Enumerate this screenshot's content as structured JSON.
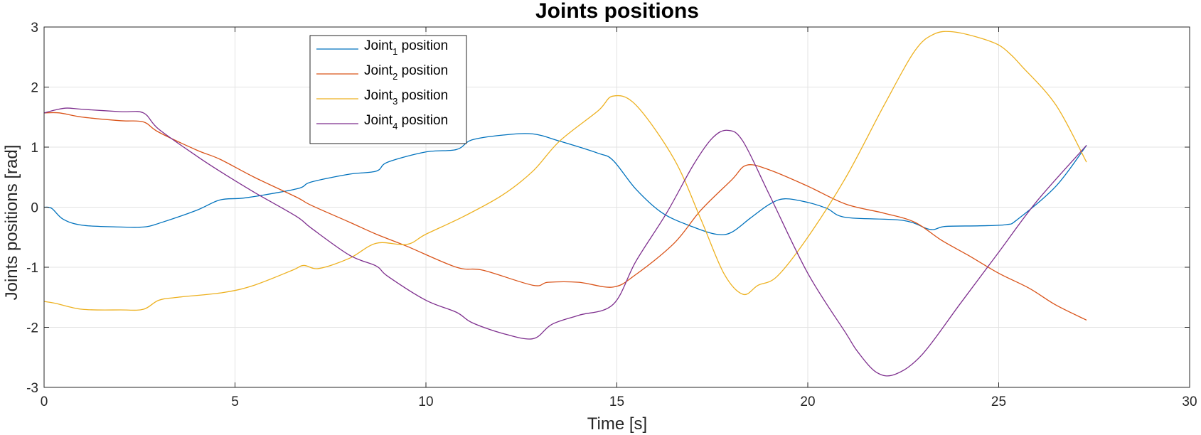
{
  "chart_data": {
    "type": "line",
    "title": "Joints positions",
    "xlabel": "Time [s]",
    "ylabel": "Joints positions [rad]",
    "xlim": [
      0,
      30
    ],
    "ylim": [
      -3,
      3
    ],
    "xticks": [
      0,
      5,
      10,
      15,
      20,
      25,
      30
    ],
    "yticks": [
      -3,
      -2,
      -1,
      0,
      1,
      2,
      3
    ],
    "xtick_labels": [
      "0",
      "5",
      "10",
      "15",
      "20",
      "25",
      "30"
    ],
    "ytick_labels": [
      "-3",
      "-2",
      "-1",
      "0",
      "1",
      "2",
      "3"
    ],
    "grid": true,
    "legend_position": "top-left",
    "series": [
      {
        "name": "Joint1 position",
        "legend_base": "Joint",
        "legend_sub": "1",
        "legend_suffix": " position",
        "color": "#0072BD",
        "points": [
          [
            0,
            0
          ],
          [
            0.2,
            -0.02
          ],
          [
            0.5,
            -0.2
          ],
          [
            1,
            -0.3
          ],
          [
            2,
            -0.33
          ],
          [
            2.6,
            -0.33
          ],
          [
            3,
            -0.27
          ],
          [
            4,
            -0.05
          ],
          [
            4.6,
            0.12
          ],
          [
            5.2,
            0.15
          ],
          [
            6,
            0.23
          ],
          [
            6.7,
            0.32
          ],
          [
            7,
            0.42
          ],
          [
            8,
            0.55
          ],
          [
            8.7,
            0.6
          ],
          [
            9,
            0.75
          ],
          [
            10,
            0.92
          ],
          [
            10.8,
            0.96
          ],
          [
            11.2,
            1.12
          ],
          [
            12,
            1.2
          ],
          [
            12.8,
            1.22
          ],
          [
            13.5,
            1.1
          ],
          [
            14.5,
            0.9
          ],
          [
            14.9,
            0.78
          ],
          [
            15.5,
            0.3
          ],
          [
            16.2,
            -0.1
          ],
          [
            17,
            -0.33
          ],
          [
            17.6,
            -0.45
          ],
          [
            18,
            -0.42
          ],
          [
            18.5,
            -0.18
          ],
          [
            19,
            0.05
          ],
          [
            19.4,
            0.14
          ],
          [
            20,
            0.08
          ],
          [
            20.5,
            -0.02
          ],
          [
            21,
            -0.17
          ],
          [
            22.5,
            -0.22
          ],
          [
            23.2,
            -0.37
          ],
          [
            23.6,
            -0.32
          ],
          [
            24.5,
            -0.31
          ],
          [
            25.2,
            -0.29
          ],
          [
            25.5,
            -0.2
          ],
          [
            26.5,
            0.35
          ],
          [
            27.3,
            1.03
          ]
        ]
      },
      {
        "name": "Joint2 position",
        "legend_base": "Joint",
        "legend_sub": "2",
        "legend_suffix": " position",
        "color": "#D95319",
        "points": [
          [
            0,
            1.57
          ],
          [
            0.4,
            1.57
          ],
          [
            1,
            1.5
          ],
          [
            2,
            1.44
          ],
          [
            2.6,
            1.42
          ],
          [
            3,
            1.25
          ],
          [
            4,
            0.95
          ],
          [
            4.6,
            0.8
          ],
          [
            5.5,
            0.5
          ],
          [
            6.6,
            0.17
          ],
          [
            7,
            0.03
          ],
          [
            8,
            -0.25
          ],
          [
            8.7,
            -0.45
          ],
          [
            9.5,
            -0.65
          ],
          [
            10.8,
            -1.0
          ],
          [
            11.5,
            -1.05
          ],
          [
            12.8,
            -1.3
          ],
          [
            13.2,
            -1.25
          ],
          [
            14,
            -1.25
          ],
          [
            14.9,
            -1.33
          ],
          [
            15.5,
            -1.12
          ],
          [
            16.5,
            -0.6
          ],
          [
            17.2,
            -0.05
          ],
          [
            18,
            0.45
          ],
          [
            18.4,
            0.7
          ],
          [
            19,
            0.62
          ],
          [
            20,
            0.35
          ],
          [
            21,
            0.05
          ],
          [
            22,
            -0.1
          ],
          [
            22.8,
            -0.25
          ],
          [
            23.5,
            -0.55
          ],
          [
            24.2,
            -0.8
          ],
          [
            25,
            -1.1
          ],
          [
            25.8,
            -1.35
          ],
          [
            26.5,
            -1.63
          ],
          [
            27.3,
            -1.88
          ]
        ]
      },
      {
        "name": "Joint3 position",
        "legend_base": "Joint",
        "legend_sub": "3",
        "legend_suffix": " position",
        "color": "#EDB120",
        "points": [
          [
            0,
            -1.57
          ],
          [
            0.3,
            -1.6
          ],
          [
            1,
            -1.7
          ],
          [
            2,
            -1.71
          ],
          [
            2.6,
            -1.7
          ],
          [
            3,
            -1.55
          ],
          [
            3.5,
            -1.5
          ],
          [
            4.7,
            -1.42
          ],
          [
            5.5,
            -1.3
          ],
          [
            6.5,
            -1.05
          ],
          [
            6.8,
            -0.97
          ],
          [
            7.2,
            -1.02
          ],
          [
            8,
            -0.85
          ],
          [
            8.7,
            -0.6
          ],
          [
            9.5,
            -0.62
          ],
          [
            10,
            -0.45
          ],
          [
            11,
            -0.15
          ],
          [
            12,
            0.2
          ],
          [
            12.8,
            0.6
          ],
          [
            13.5,
            1.1
          ],
          [
            14.5,
            1.6
          ],
          [
            14.9,
            1.85
          ],
          [
            15.5,
            1.7
          ],
          [
            16.5,
            0.8
          ],
          [
            17.2,
            -0.2
          ],
          [
            17.8,
            -1.1
          ],
          [
            18.3,
            -1.45
          ],
          [
            18.7,
            -1.3
          ],
          [
            19.2,
            -1.15
          ],
          [
            20,
            -0.5
          ],
          [
            21,
            0.5
          ],
          [
            22,
            1.7
          ],
          [
            22.8,
            2.6
          ],
          [
            23.3,
            2.88
          ],
          [
            23.8,
            2.92
          ],
          [
            24.5,
            2.82
          ],
          [
            25,
            2.7
          ],
          [
            25.3,
            2.55
          ],
          [
            25.6,
            2.35
          ],
          [
            26.5,
            1.7
          ],
          [
            27.3,
            0.75
          ]
        ]
      },
      {
        "name": "Joint4 position",
        "legend_base": "Joint",
        "legend_sub": "4",
        "legend_suffix": " position",
        "color": "#7E2F8E",
        "points": [
          [
            0,
            1.57
          ],
          [
            0.3,
            1.62
          ],
          [
            0.6,
            1.65
          ],
          [
            1,
            1.63
          ],
          [
            2,
            1.59
          ],
          [
            2.6,
            1.57
          ],
          [
            3,
            1.3
          ],
          [
            4,
            0.85
          ],
          [
            4.6,
            0.6
          ],
          [
            5.5,
            0.25
          ],
          [
            6.6,
            -0.15
          ],
          [
            7,
            -0.35
          ],
          [
            8,
            -0.8
          ],
          [
            8.7,
            -0.98
          ],
          [
            9,
            -1.15
          ],
          [
            10,
            -1.55
          ],
          [
            10.8,
            -1.75
          ],
          [
            11.2,
            -1.92
          ],
          [
            12,
            -2.1
          ],
          [
            12.8,
            -2.19
          ],
          [
            13.3,
            -1.95
          ],
          [
            14,
            -1.8
          ],
          [
            14.9,
            -1.62
          ],
          [
            15.5,
            -0.9
          ],
          [
            16.3,
            -0.1
          ],
          [
            17,
            0.7
          ],
          [
            17.5,
            1.15
          ],
          [
            17.9,
            1.28
          ],
          [
            18.3,
            1.1
          ],
          [
            19,
            0.2
          ],
          [
            20,
            -1.1
          ],
          [
            21,
            -2.1
          ],
          [
            21.3,
            -2.4
          ],
          [
            21.8,
            -2.75
          ],
          [
            22.3,
            -2.78
          ],
          [
            23,
            -2.45
          ],
          [
            24,
            -1.6
          ],
          [
            25,
            -0.75
          ],
          [
            26,
            0.1
          ],
          [
            27.3,
            1.03
          ]
        ]
      }
    ]
  }
}
